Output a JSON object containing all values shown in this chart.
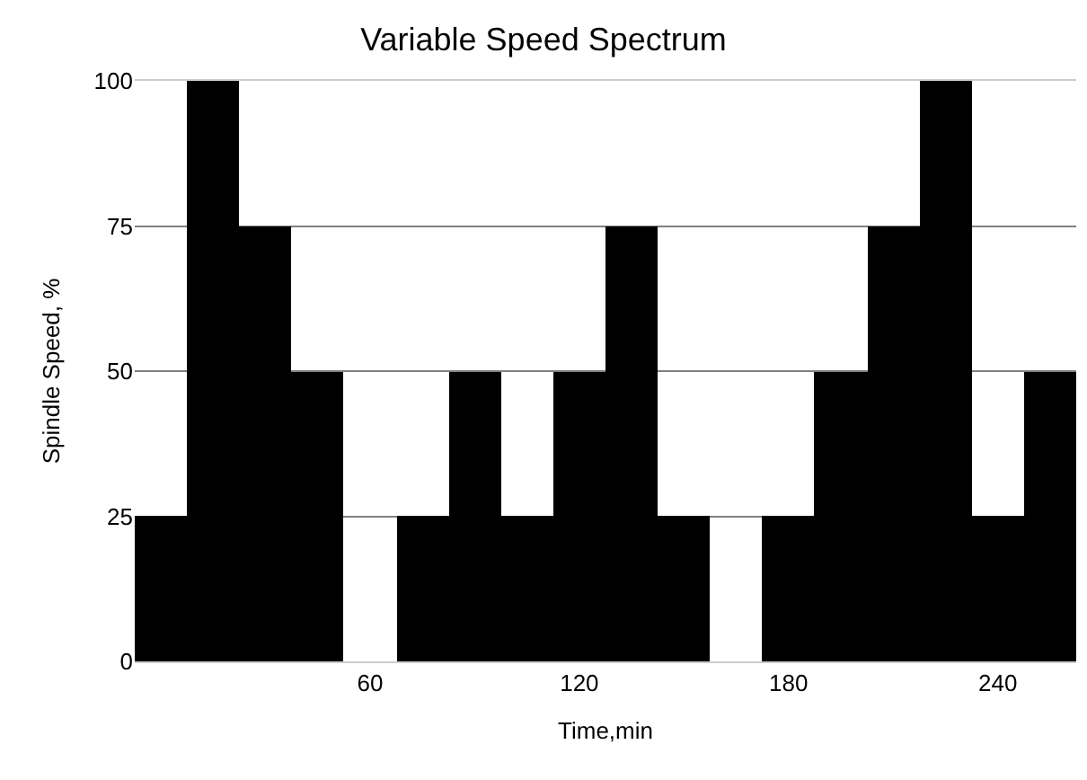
{
  "chart_data": {
    "type": "bar",
    "title": "Variable Speed Spectrum",
    "xlabel": "Time,min",
    "ylabel": "Spindle Speed, %",
    "x": [
      0,
      15,
      30,
      45,
      60,
      75,
      90,
      105,
      120,
      135,
      150,
      165,
      180,
      195,
      210,
      225,
      240,
      255
    ],
    "series": [
      {
        "color": "#000000",
        "values": [
          25,
          100,
          75,
          50,
          0,
          25,
          50,
          25,
          50,
          75,
          25,
          0,
          25,
          50,
          75,
          100,
          25,
          50
        ]
      }
    ],
    "xlim": [
      -7.5,
      262.5
    ],
    "xticks": [
      60,
      120,
      180,
      240
    ],
    "ylim": [
      0,
      100
    ],
    "yticks": [
      0,
      25,
      50,
      75,
      100
    ],
    "grid": "y"
  }
}
